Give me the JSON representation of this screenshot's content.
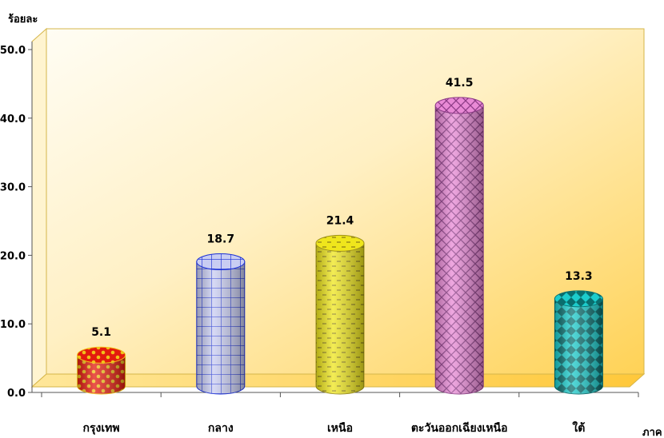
{
  "chart_data": {
    "type": "bar",
    "bar_shape": "cylinder",
    "categories": [
      "กรุงเทพ",
      "กลาง",
      "เหนือ",
      "ตะวันออกเฉียงเหนือ",
      "ใต้"
    ],
    "values": [
      5.1,
      18.7,
      21.4,
      41.5,
      13.3
    ],
    "value_labels": [
      "5.1",
      "18.7",
      "21.4",
      "41.5",
      "13.3"
    ],
    "bar_colors": [
      "#e31b0e",
      "#c9cdf2",
      "#efe61c",
      "#e98ad6",
      "#1ccccc"
    ],
    "pattern_colors": [
      "#f1c21a",
      "#1a2fd6",
      "#9c8f1a",
      "#8d3c87",
      "#0a6e6e"
    ],
    "ylabel": "ร้อยละ",
    "xlabel": "ภาค",
    "ylim": [
      0,
      50
    ],
    "yticks": [
      "0.0",
      "10.0",
      "20.0",
      "30.0",
      "40.0",
      "50.0"
    ],
    "grid": false,
    "legend": "none",
    "background_gradient": [
      "#fff6d8",
      "#ffd86a"
    ]
  }
}
